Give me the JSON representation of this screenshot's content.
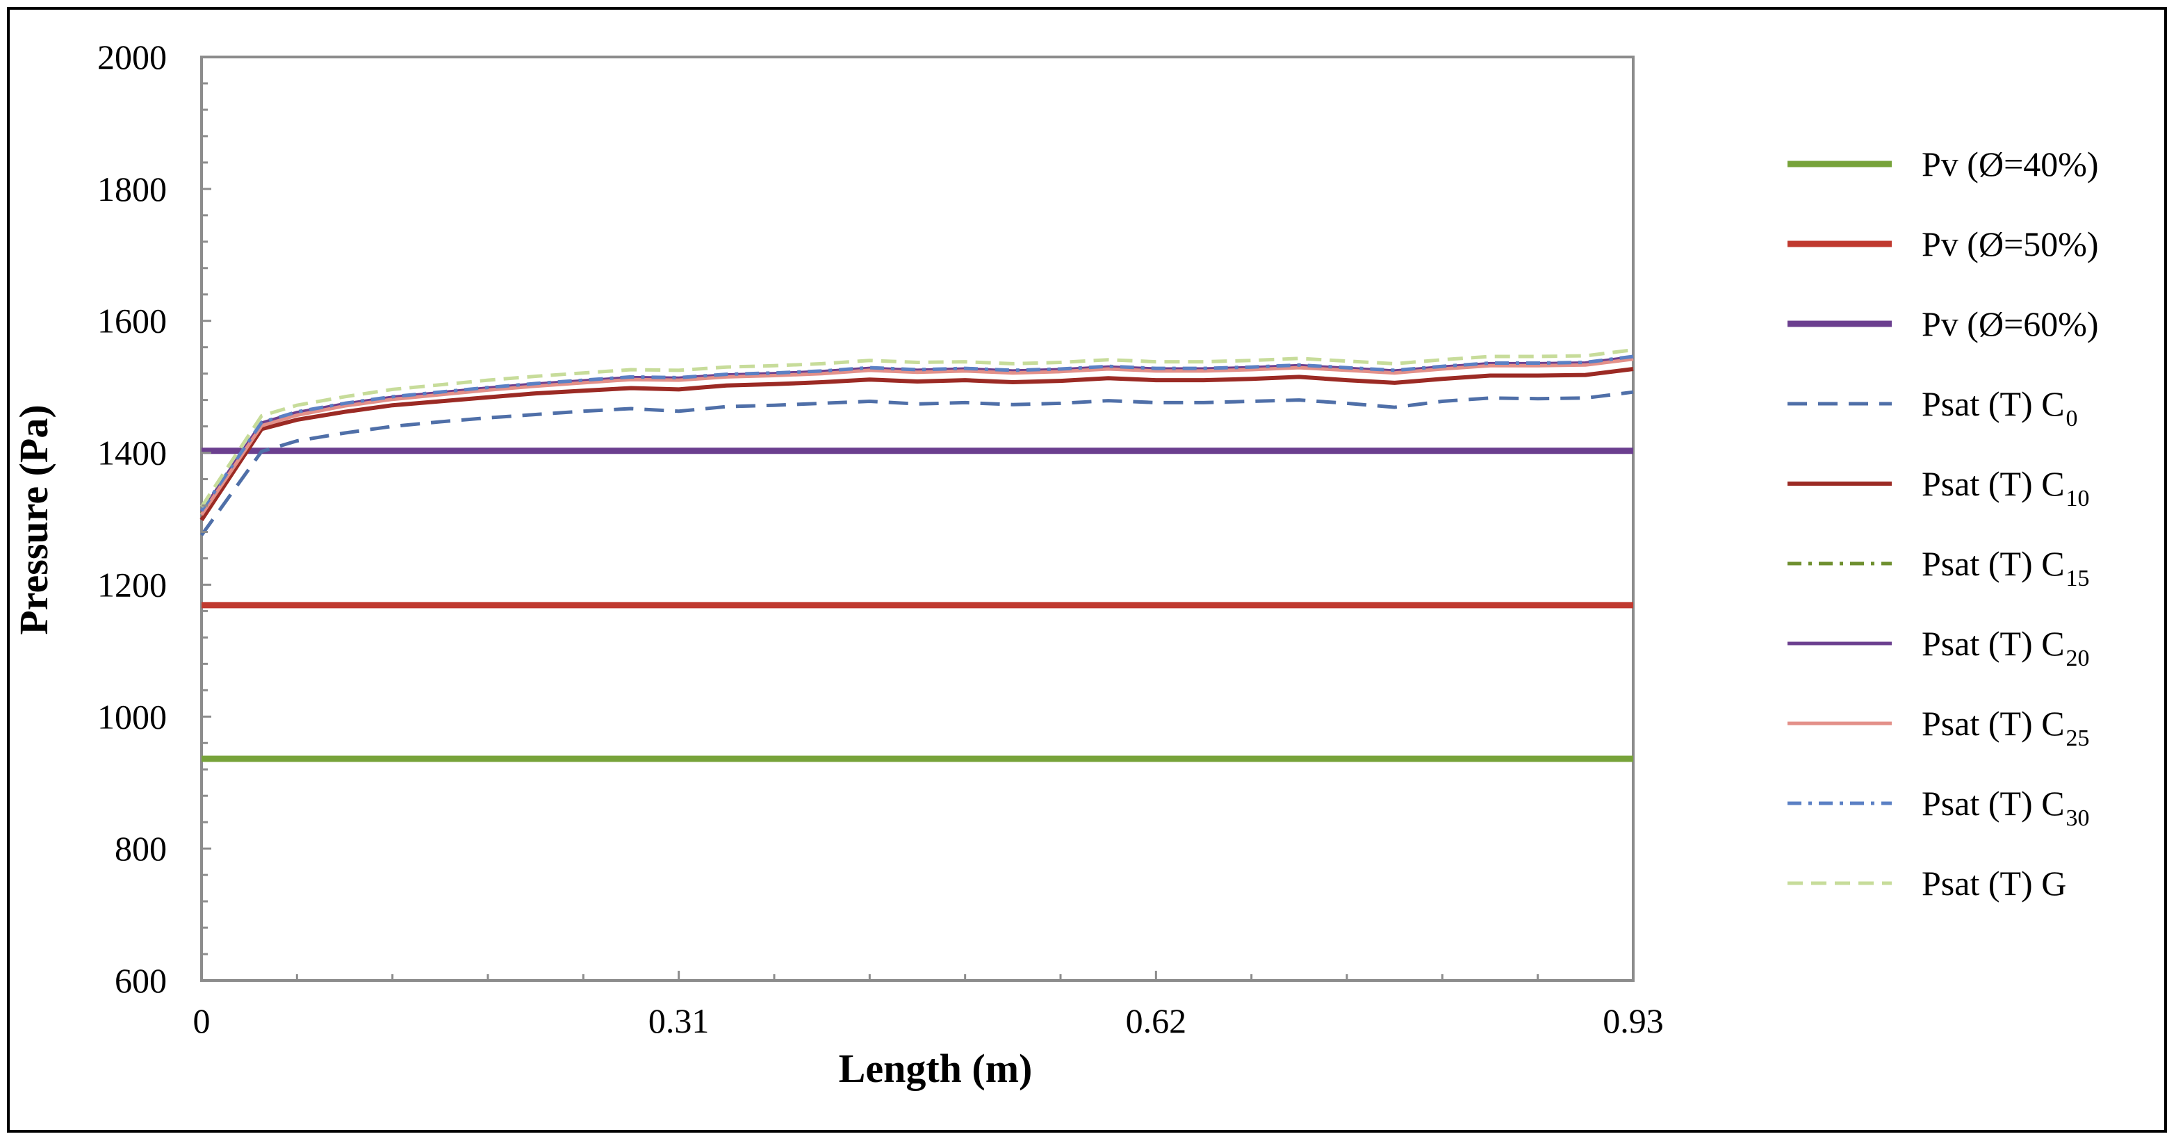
{
  "chart_data": {
    "type": "line",
    "xlabel": "Length (m)",
    "ylabel": "Pressure (Pa)",
    "xlim": [
      0,
      0.93
    ],
    "ylim": [
      600,
      2000
    ],
    "x_ticks": [
      "0",
      "0.31",
      "0.62",
      "0.93"
    ],
    "x_tick_values": [
      0,
      0.31,
      0.62,
      0.93
    ],
    "y_ticks": [
      "600",
      "800",
      "1000",
      "1200",
      "1400",
      "1600",
      "1800",
      "2000"
    ],
    "y_tick_values": [
      600,
      800,
      1000,
      1200,
      1400,
      1600,
      1800,
      2000
    ],
    "legend_position": "right",
    "grid": false,
    "x": [
      0,
      0.039,
      0.062,
      0.093,
      0.124,
      0.155,
      0.186,
      0.217,
      0.248,
      0.279,
      0.31,
      0.341,
      0.372,
      0.403,
      0.434,
      0.465,
      0.496,
      0.527,
      0.558,
      0.589,
      0.62,
      0.651,
      0.682,
      0.713,
      0.744,
      0.775,
      0.806,
      0.837,
      0.868,
      0.899,
      0.93
    ],
    "series": [
      {
        "name": "Pv (Ø=40%)",
        "label": "Pv (Ø=40%)",
        "sub": "",
        "color": "#77A33A",
        "dash": "",
        "width": 9,
        "constant": 936
      },
      {
        "name": "Pv (Ø=50%)",
        "label": "Pv (Ø=50%)",
        "sub": "",
        "color": "#C0392F",
        "dash": "",
        "width": 9,
        "constant": 1169
      },
      {
        "name": "Pv (Ø=60%)",
        "label": "Pv (Ø=60%)",
        "sub": "",
        "color": "#6B3F8F",
        "dash": "",
        "width": 9,
        "constant": 1403
      },
      {
        "name": "Psat (T) C0",
        "label": "Psat (T)  C",
        "sub": "0",
        "color": "#4F6FA8",
        "dash": "28,16",
        "width": 5,
        "values": [
          1275,
          1402,
          1418,
          1430,
          1440,
          1447,
          1453,
          1458,
          1463,
          1467,
          1463,
          1470,
          1472,
          1475,
          1478,
          1474,
          1476,
          1473,
          1475,
          1479,
          1476,
          1476,
          1478,
          1480,
          1475,
          1469,
          1478,
          1483,
          1482,
          1483,
          1492
        ]
      },
      {
        "name": "Psat (T) C10",
        "label": "Psat (T)  C",
        "sub": "10",
        "color": "#9B2A24",
        "dash": "",
        "width": 6,
        "values": [
          1298,
          1436,
          1450,
          1462,
          1472,
          1478,
          1484,
          1490,
          1494,
          1498,
          1496,
          1502,
          1504,
          1507,
          1511,
          1508,
          1510,
          1507,
          1509,
          1513,
          1510,
          1510,
          1512,
          1515,
          1510,
          1506,
          1512,
          1517,
          1517,
          1518,
          1527
        ]
      },
      {
        "name": "Psat (T) C15",
        "label": "Psat (T)  C",
        "sub": "15",
        "color": "#6E8F2E",
        "dash": "20,10,5,10",
        "width": 5,
        "values": [
          1308,
          1443,
          1458,
          1472,
          1482,
          1489,
          1496,
          1502,
          1507,
          1512,
          1511,
          1516,
          1518,
          1521,
          1526,
          1523,
          1525,
          1522,
          1524,
          1528,
          1525,
          1525,
          1527,
          1530,
          1526,
          1522,
          1528,
          1533,
          1533,
          1534,
          1543
        ]
      },
      {
        "name": "Psat (T) C20",
        "label": "Psat (T)  C",
        "sub": "20",
        "color": "#6B3F8F",
        "dash": "",
        "width": 5,
        "values": [
          1310,
          1445,
          1461,
          1474,
          1484,
          1491,
          1498,
          1504,
          1509,
          1514,
          1513,
          1518,
          1520,
          1523,
          1528,
          1525,
          1527,
          1524,
          1526,
          1530,
          1527,
          1527,
          1529,
          1532,
          1528,
          1524,
          1530,
          1535,
          1535,
          1536,
          1545
        ]
      },
      {
        "name": "Psat (T) C25",
        "label": "Psat (T)  C",
        "sub": "25",
        "color": "#E39089",
        "dash": "",
        "width": 5,
        "values": [
          1306,
          1441,
          1457,
          1471,
          1481,
          1488,
          1495,
          1501,
          1506,
          1511,
          1510,
          1515,
          1517,
          1520,
          1525,
          1522,
          1524,
          1521,
          1523,
          1527,
          1524,
          1524,
          1526,
          1529,
          1525,
          1521,
          1527,
          1532,
          1532,
          1533,
          1542
        ]
      },
      {
        "name": "Psat (T) C30",
        "label": "Psat (T)  C",
        "sub": "30",
        "color": "#5B80C4",
        "dash": "20,10,5,10",
        "width": 5,
        "values": [
          1312,
          1446,
          1462,
          1475,
          1485,
          1492,
          1499,
          1505,
          1510,
          1515,
          1514,
          1519,
          1521,
          1524,
          1529,
          1526,
          1528,
          1525,
          1527,
          1531,
          1528,
          1528,
          1530,
          1533,
          1529,
          1525,
          1531,
          1536,
          1536,
          1537,
          1546
        ]
      },
      {
        "name": "Psat (T) G",
        "label": "Psat (T)  G",
        "sub": "",
        "color": "#C7DC9A",
        "dash": "22,12",
        "width": 5,
        "values": [
          1318,
          1456,
          1472,
          1485,
          1496,
          1503,
          1510,
          1516,
          1521,
          1526,
          1525,
          1530,
          1532,
          1535,
          1540,
          1537,
          1538,
          1535,
          1537,
          1541,
          1538,
          1538,
          1540,
          1543,
          1539,
          1535,
          1541,
          1546,
          1546,
          1547,
          1556
        ]
      }
    ]
  }
}
